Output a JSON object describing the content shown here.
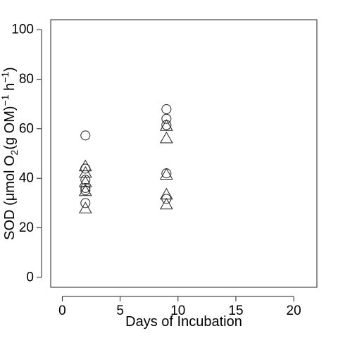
{
  "chart_data": {
    "type": "scatter",
    "xlabel": "Days of Incubation",
    "ylabel": {
      "prefix": "SOD (μmol O",
      "sub": "2",
      "middle": "(g OM)",
      "sup1": "−1",
      "h": " h",
      "sup2": "−1",
      "suffix": ")"
    },
    "xlim": [
      -1,
      22
    ],
    "ylim": [
      -4,
      104
    ],
    "xticks": [
      0,
      5,
      10,
      15,
      20
    ],
    "yticks": [
      0,
      20,
      40,
      60,
      80,
      100
    ],
    "grid": false,
    "series": [
      {
        "marker": "circle",
        "points": [
          {
            "x": 2,
            "y": 57.3
          },
          {
            "x": 2,
            "y": 43.9
          },
          {
            "x": 2,
            "y": 39.4
          },
          {
            "x": 2,
            "y": 36.1
          },
          {
            "x": 2,
            "y": 35.1
          },
          {
            "x": 2,
            "y": 30.0
          },
          {
            "x": 9,
            "y": 67.9
          },
          {
            "x": 9,
            "y": 64.0
          },
          {
            "x": 9,
            "y": 61.5
          },
          {
            "x": 9,
            "y": 42.0
          },
          {
            "x": 9,
            "y": 31.7
          }
        ]
      },
      {
        "marker": "triangle",
        "points": [
          {
            "x": 2,
            "y": 45.0
          },
          {
            "x": 2,
            "y": 42.4
          },
          {
            "x": 2,
            "y": 38.6
          },
          {
            "x": 2,
            "y": 35.0
          },
          {
            "x": 2,
            "y": 28.0
          },
          {
            "x": 9,
            "y": 61.3
          },
          {
            "x": 9,
            "y": 56.3
          },
          {
            "x": 9,
            "y": 41.6
          },
          {
            "x": 9,
            "y": 33.6
          },
          {
            "x": 9,
            "y": 29.6
          }
        ]
      }
    ]
  }
}
